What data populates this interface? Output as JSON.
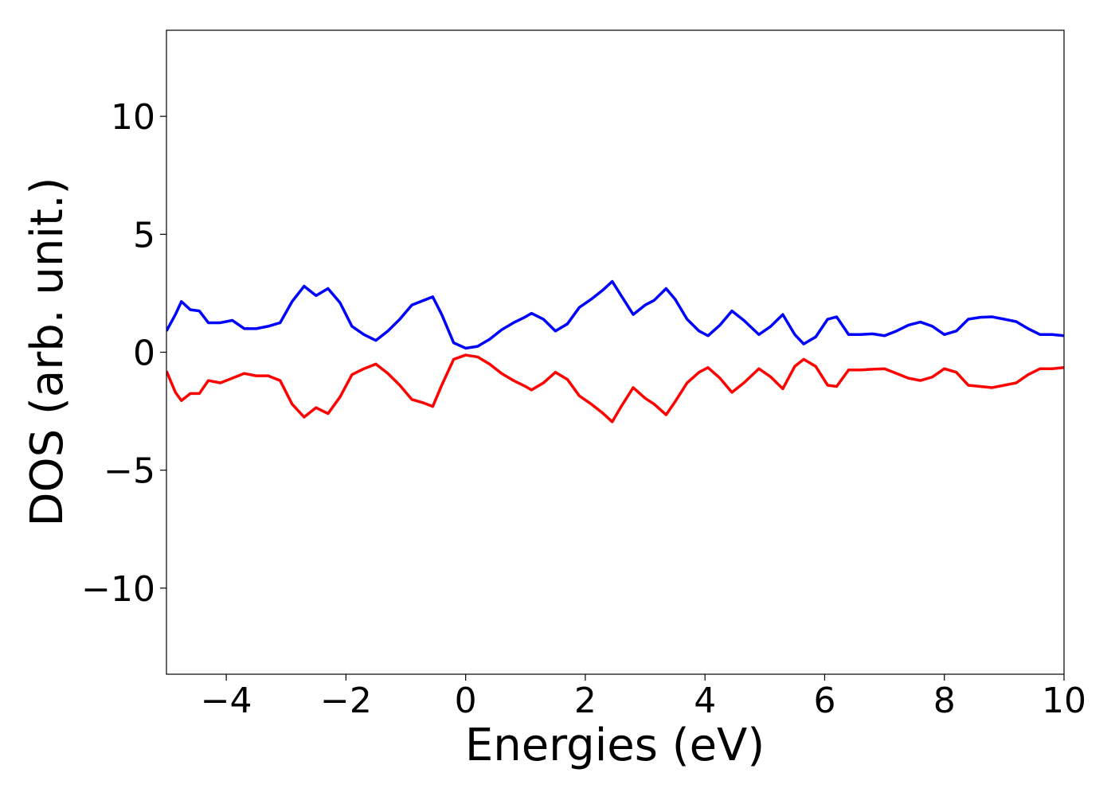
{
  "chart_data": {
    "type": "line",
    "xlabel": "Energies (eV)",
    "ylabel": "DOS (arb. unit.)",
    "x": [
      -5,
      -4.85,
      -4.75,
      -4.6,
      -4.45,
      -4.3,
      -4.1,
      -3.9,
      -3.7,
      -3.5,
      -3.3,
      -3.1,
      -2.9,
      -2.7,
      -2.5,
      -2.3,
      -2.1,
      -1.9,
      -1.7,
      -1.5,
      -1.3,
      -1.1,
      -0.9,
      -0.7,
      -0.55,
      -0.4,
      -0.2,
      0,
      0.2,
      0.4,
      0.6,
      0.8,
      1.0,
      1.1,
      1.3,
      1.5,
      1.7,
      1.9,
      2.1,
      2.3,
      2.45,
      2.6,
      2.8,
      3.0,
      3.15,
      3.35,
      3.5,
      3.7,
      3.9,
      4.05,
      4.25,
      4.45,
      4.65,
      4.9,
      5.1,
      5.3,
      5.5,
      5.65,
      5.85,
      6.05,
      6.2,
      6.4,
      6.6,
      6.8,
      7.0,
      7.2,
      7.4,
      7.6,
      7.8,
      8.0,
      8.2,
      8.4,
      8.6,
      8.8,
      9.0,
      9.2,
      9.4,
      9.6,
      9.8,
      10
    ],
    "series": [
      {
        "color": "#0000ff",
        "values": [
          0.9,
          1.6,
          2.15,
          1.8,
          1.75,
          1.25,
          1.25,
          1.35,
          1.0,
          1.0,
          1.1,
          1.25,
          2.15,
          2.8,
          2.4,
          2.7,
          2.1,
          1.1,
          0.75,
          0.5,
          0.9,
          1.4,
          2.0,
          2.2,
          2.35,
          1.6,
          0.4,
          0.17,
          0.25,
          0.55,
          0.95,
          1.25,
          1.5,
          1.65,
          1.4,
          0.9,
          1.2,
          1.9,
          2.25,
          2.65,
          3.0,
          2.4,
          1.6,
          2.0,
          2.2,
          2.7,
          2.25,
          1.4,
          0.9,
          0.7,
          1.15,
          1.75,
          1.35,
          0.75,
          1.1,
          1.6,
          0.75,
          0.35,
          0.65,
          1.4,
          1.5,
          0.75,
          0.75,
          0.78,
          0.7,
          0.9,
          1.15,
          1.28,
          1.1,
          0.75,
          0.9,
          1.4,
          1.48,
          1.5,
          1.4,
          1.3,
          1.0,
          0.75,
          0.75,
          0.7
        ]
      },
      {
        "color": "#ff0000",
        "values": [
          -0.8,
          -1.7,
          -2.05,
          -1.75,
          -1.75,
          -1.2,
          -1.3,
          -1.1,
          -0.9,
          -1.0,
          -1.0,
          -1.2,
          -2.2,
          -2.75,
          -2.35,
          -2.6,
          -1.9,
          -0.95,
          -0.7,
          -0.5,
          -0.9,
          -1.4,
          -2.0,
          -2.15,
          -2.3,
          -1.4,
          -0.3,
          -0.12,
          -0.2,
          -0.5,
          -0.9,
          -1.2,
          -1.45,
          -1.6,
          -1.3,
          -0.85,
          -1.15,
          -1.85,
          -2.2,
          -2.6,
          -2.95,
          -2.3,
          -1.5,
          -1.95,
          -2.2,
          -2.65,
          -2.1,
          -1.3,
          -0.85,
          -0.65,
          -1.1,
          -1.7,
          -1.3,
          -0.7,
          -1.05,
          -1.55,
          -0.6,
          -0.3,
          -0.6,
          -1.4,
          -1.45,
          -0.75,
          -0.75,
          -0.72,
          -0.7,
          -0.9,
          -1.1,
          -1.2,
          -1.05,
          -0.7,
          -0.85,
          -1.4,
          -1.45,
          -1.5,
          -1.4,
          -1.3,
          -0.95,
          -0.7,
          -0.7,
          -0.65
        ]
      }
    ],
    "xlim": [
      -5,
      10
    ],
    "xticks": [
      {
        "value": -4,
        "label": "−4"
      },
      {
        "value": -2,
        "label": "−2"
      },
      0,
      2,
      4,
      6,
      8,
      10
    ],
    "ylim": [
      -13.65,
      13.65
    ],
    "yticks": [
      {
        "value": -10,
        "label": "−10"
      },
      {
        "value": -5,
        "label": "−5"
      },
      0,
      5,
      10
    ],
    "grid": false
  }
}
